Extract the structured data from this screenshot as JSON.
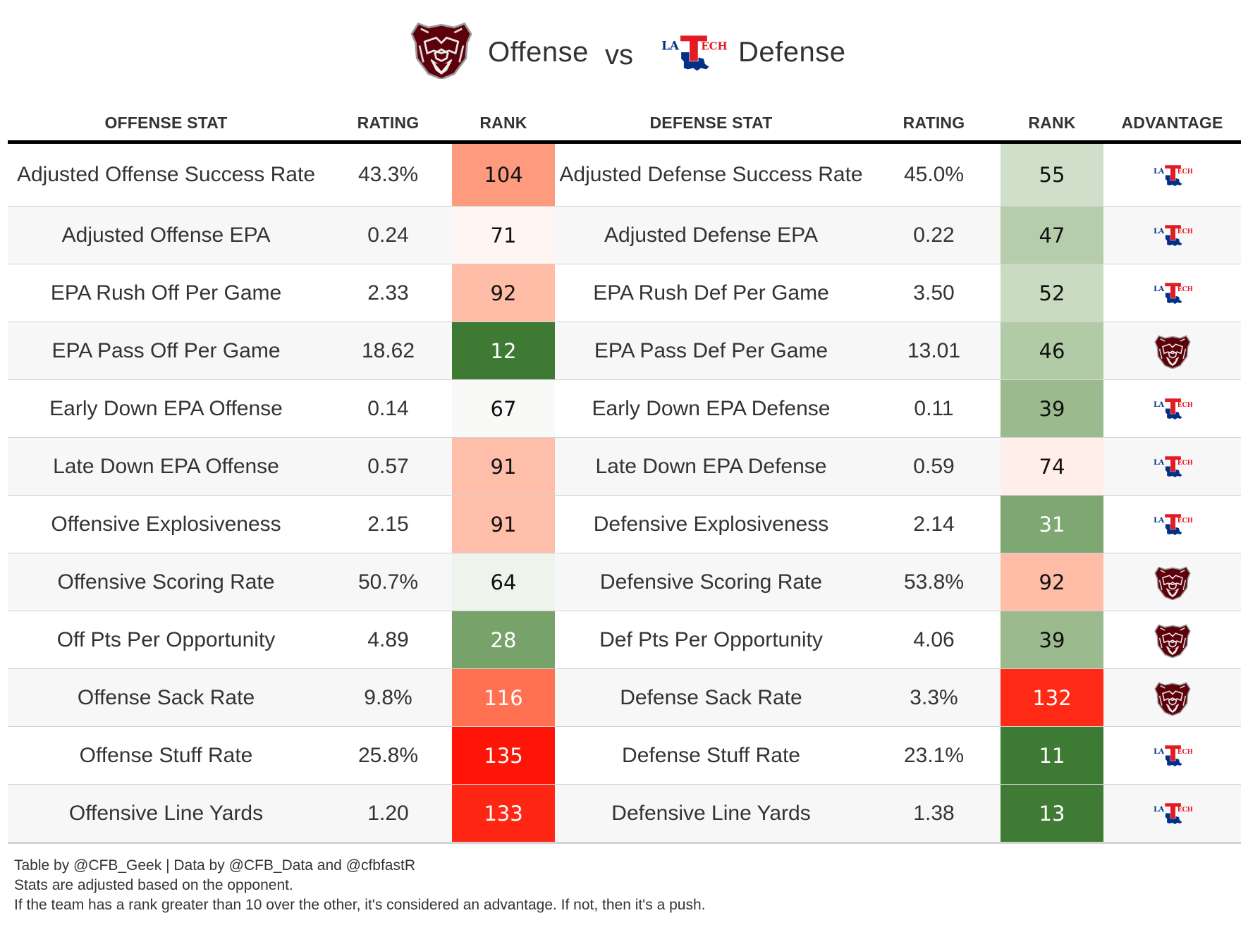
{
  "title": {
    "left_team_icon": "missouri-state-bear-logo",
    "left_label": "Offense",
    "vs": "vs",
    "right_team_icon": "louisiana-tech-logo",
    "right_label": "Defense"
  },
  "colors": {
    "missouri_state_maroon": "#5e0009",
    "latech_red": "#e31b23",
    "latech_blue": "#003087",
    "header_rule": "#000000",
    "row_alt_bg": "#f7f7f7",
    "row_divider": "#d3d3d3"
  },
  "columns": [
    "OFFENSE STAT",
    "RATING",
    "RANK",
    "DEFENSE STAT",
    "RATING",
    "RANK",
    "ADVANTAGE"
  ],
  "rows": [
    {
      "off_stat": "Adjusted Offense Success Rate",
      "off_rating": "43.3%",
      "off_rank": "104",
      "off_rank_color": "#fe9b7e",
      "off_rank_text": "dark",
      "def_stat": "Adjusted Defense Success Rate",
      "def_rating": "45.0%",
      "def_rank": "55",
      "def_rank_color": "#d0dfca",
      "def_rank_text": "dark",
      "advantage": "latech"
    },
    {
      "off_stat": "Adjusted Offense EPA",
      "off_rating": "0.24",
      "off_rank": "71",
      "off_rank_color": "#fff5f2",
      "off_rank_text": "dark",
      "def_stat": "Adjusted Defense EPA",
      "def_rating": "0.22",
      "def_rank": "47",
      "def_rank_color": "#b5cdaa",
      "def_rank_text": "dark",
      "advantage": "latech"
    },
    {
      "off_stat": "EPA Rush Off Per Game",
      "off_rating": "2.33",
      "off_rank": "92",
      "off_rank_color": "#ffbda8",
      "off_rank_text": "dark",
      "def_stat": "EPA Rush Def Per Game",
      "def_rating": "3.50",
      "def_rank": "52",
      "def_rank_color": "#c9dbc1",
      "def_rank_text": "dark",
      "advantage": "latech"
    },
    {
      "off_stat": "EPA Pass Off Per Game",
      "off_rating": "18.62",
      "off_rank": "12",
      "off_rank_color": "#3e7a34",
      "off_rank_text": "light",
      "def_stat": "EPA Pass Def Per Game",
      "def_rating": "13.01",
      "def_rank": "46",
      "def_rank_color": "#b2cba7",
      "def_rank_text": "dark",
      "advantage": "bear"
    },
    {
      "off_stat": "Early Down EPA Offense",
      "off_rating": "0.14",
      "off_rank": "67",
      "off_rank_color": "#f9f9f7",
      "off_rank_text": "dark",
      "def_stat": "Early Down EPA Defense",
      "def_rating": "0.11",
      "def_rank": "39",
      "def_rank_color": "#9bbb8f",
      "def_rank_text": "dark",
      "advantage": "latech"
    },
    {
      "off_stat": "Late Down EPA Offense",
      "off_rating": "0.57",
      "off_rank": "91",
      "off_rank_color": "#ffbea9",
      "off_rank_text": "dark",
      "def_stat": "Late Down EPA Defense",
      "def_rating": "0.59",
      "def_rank": "74",
      "def_rank_color": "#ffeeea",
      "def_rank_text": "dark",
      "advantage": "latech"
    },
    {
      "off_stat": "Offensive Explosiveness",
      "off_rating": "2.15",
      "off_rank": "91",
      "off_rank_color": "#ffbea9",
      "off_rank_text": "dark",
      "def_stat": "Defensive Explosiveness",
      "def_rating": "2.14",
      "def_rank": "31",
      "def_rank_color": "#7ea771",
      "def_rank_text": "light",
      "advantage": "latech"
    },
    {
      "off_stat": "Offensive Scoring Rate",
      "off_rating": "50.7%",
      "off_rank": "64",
      "off_rank_color": "#eef3ec",
      "off_rank_text": "dark",
      "def_stat": "Defensive Scoring Rate",
      "def_rating": "53.8%",
      "def_rank": "92",
      "def_rank_color": "#ffbda8",
      "def_rank_text": "dark",
      "advantage": "bear"
    },
    {
      "off_stat": "Off Pts Per Opportunity",
      "off_rating": "4.89",
      "off_rank": "28",
      "off_rank_color": "#77a269",
      "off_rank_text": "light",
      "def_stat": "Def Pts Per Opportunity",
      "def_rating": "4.06",
      "def_rank": "39",
      "def_rank_color": "#9bbb8f",
      "def_rank_text": "dark",
      "advantage": "bear"
    },
    {
      "off_stat": "Offense Sack Rate",
      "off_rating": "9.8%",
      "off_rank": "116",
      "off_rank_color": "#ff7151",
      "off_rank_text": "light",
      "def_stat": "Defense Sack Rate",
      "def_rating": "3.3%",
      "def_rank": "132",
      "def_rank_color": "#ff2a16",
      "def_rank_text": "light",
      "advantage": "bear"
    },
    {
      "off_stat": "Offense Stuff Rate",
      "off_rating": "25.8%",
      "off_rank": "135",
      "off_rank_color": "#ff1408",
      "off_rank_text": "light",
      "def_stat": "Defense Stuff Rate",
      "def_rating": "23.1%",
      "def_rank": "11",
      "def_rank_color": "#3d7a33",
      "def_rank_text": "light",
      "advantage": "latech"
    },
    {
      "off_stat": "Offensive Line Yards",
      "off_rating": "1.20",
      "off_rank": "133",
      "off_rank_color": "#ff2714",
      "off_rank_text": "light",
      "def_stat": "Defensive Line Yards",
      "def_rating": "1.38",
      "def_rank": "13",
      "def_rank_color": "#3f7b35",
      "def_rank_text": "light",
      "advantage": "latech"
    }
  ],
  "footer": {
    "line1": "Table by @CFB_Geek | Data by @CFB_Data and @cfbfastR",
    "line2": "Stats are adjusted based on the opponent.",
    "line3": "If the team has a rank greater than 10 over the other, it's considered an advantage. If not, then it's a push."
  }
}
